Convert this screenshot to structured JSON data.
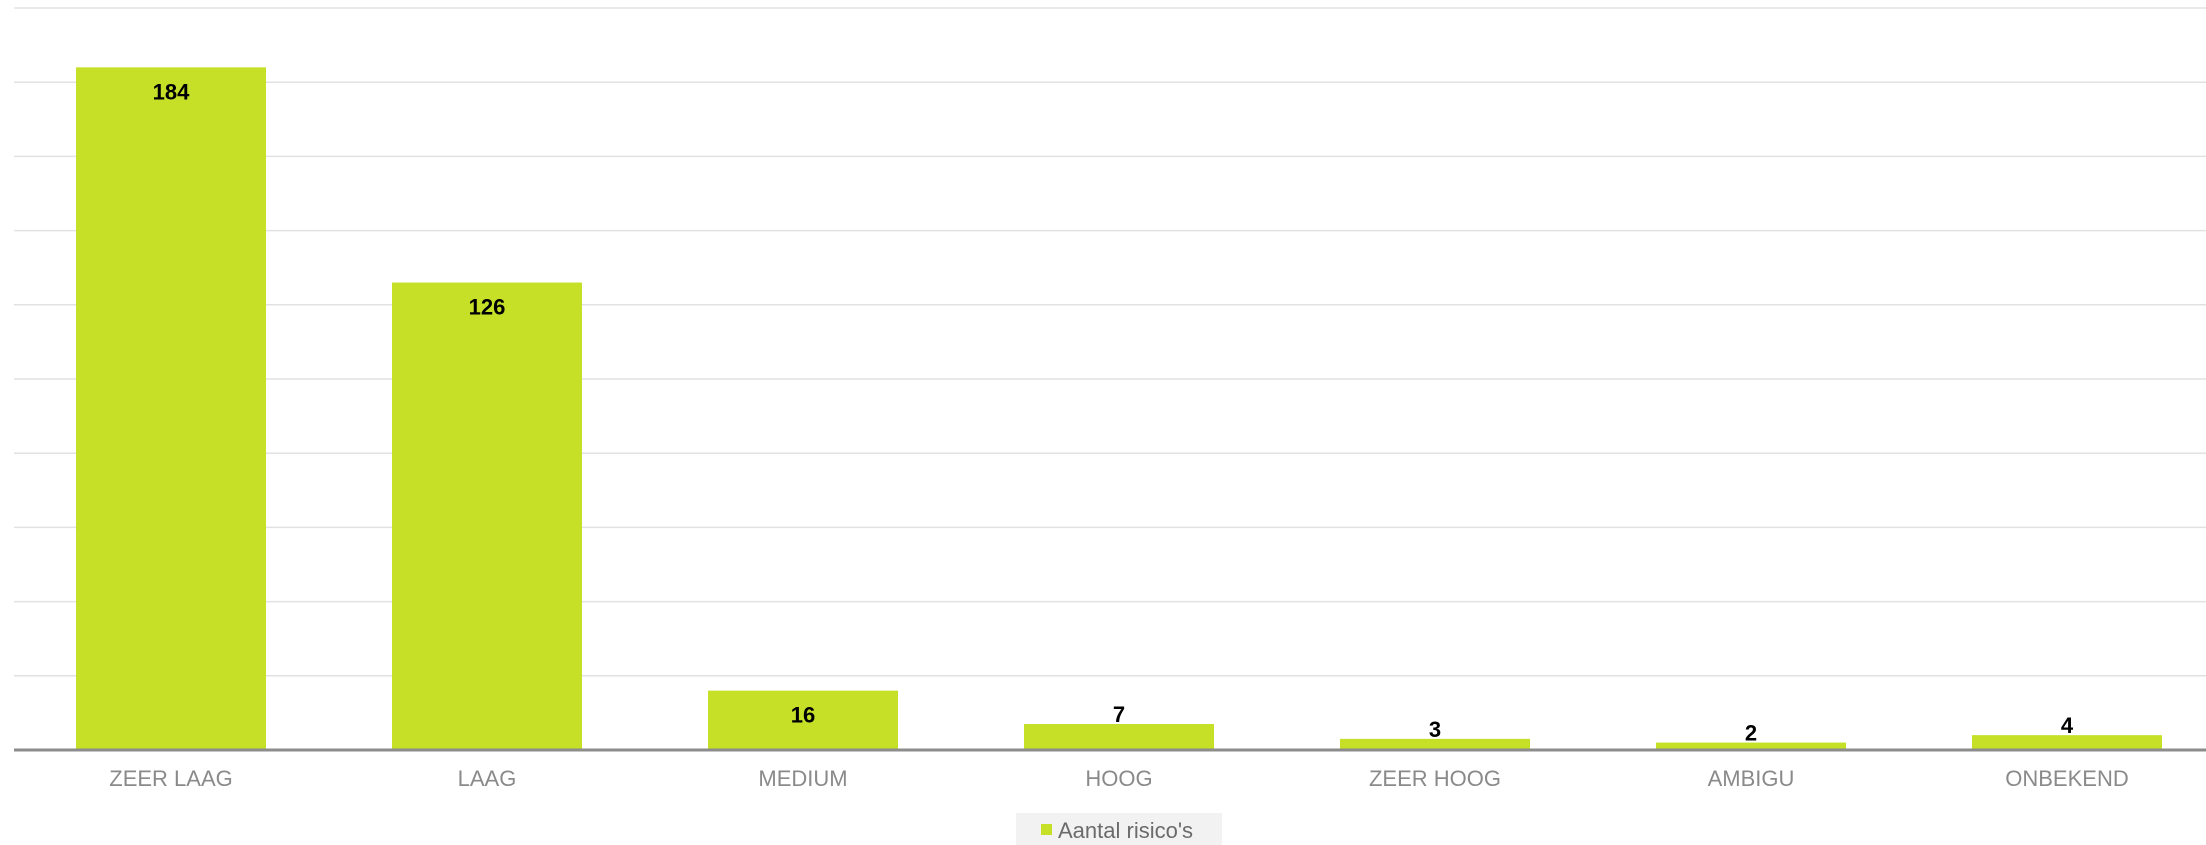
{
  "chart_data": {
    "type": "bar",
    "title": "",
    "xlabel": "",
    "ylabel": "",
    "categories": [
      "ZEER LAAG",
      "LAAG",
      "MEDIUM",
      "HOOG",
      "ZEER HOOG",
      "AMBIGU",
      "ONBEKEND"
    ],
    "series": [
      {
        "name": "Aantal risico's",
        "values": [
          184,
          126,
          16,
          7,
          3,
          2,
          4
        ]
      }
    ],
    "ylim": [
      0,
      200
    ],
    "grid": true,
    "legend_position": "bottom-center",
    "colors": {
      "bar": "#c5e027",
      "grid": "#e2e2e2",
      "axis": "#8c8c8c",
      "legend_bg": "#f2f2f2"
    }
  }
}
